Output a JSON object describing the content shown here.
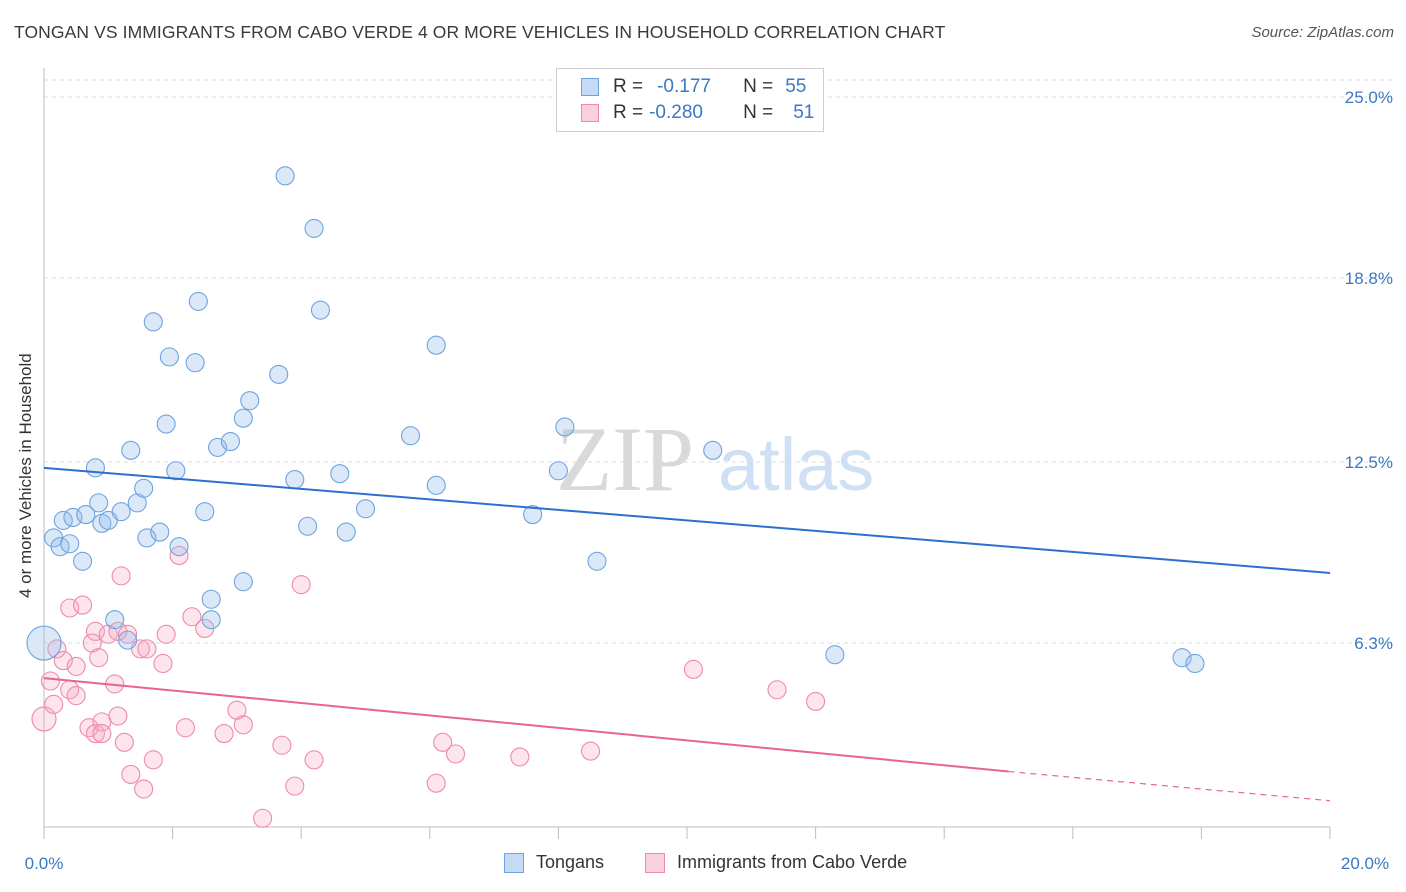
{
  "title": "TONGAN VS IMMIGRANTS FROM CABO VERDE 4 OR MORE VEHICLES IN HOUSEHOLD CORRELATION CHART",
  "source": "Source: ZipAtlas.com",
  "watermark": {
    "zip": "ZIP",
    "atlas": "atlas"
  },
  "legend": {
    "rows": [
      {
        "r_label": "R =",
        "r_value": "-0.177",
        "n_label": "N =",
        "n_value": "55",
        "color": "#6fa3e0"
      },
      {
        "r_label": "R =",
        "r_value": "-0.280",
        "n_label": "N =",
        "n_value": "51",
        "color": "#f08aa8"
      }
    ]
  },
  "bottom_legend": {
    "series1": "Tongans",
    "series2": "Immigrants from Cabo Verde"
  },
  "chart_data": {
    "type": "scatter",
    "title": "TONGAN VS IMMIGRANTS FROM CABO VERDE 4 OR MORE VEHICLES IN HOUSEHOLD CORRELATION CHART",
    "xlabel": "",
    "ylabel": "4 or more Vehicles in Household",
    "xlim": [
      0,
      20
    ],
    "ylim": [
      0,
      25
    ],
    "x_ticks": [
      "0.0%",
      "20.0%"
    ],
    "y_ticks": [
      {
        "value": 25.0,
        "label": "25.0%"
      },
      {
        "value": 18.8,
        "label": "18.8%"
      },
      {
        "value": 12.5,
        "label": "12.5%"
      },
      {
        "value": 6.3,
        "label": "6.3%"
      }
    ],
    "grid": true,
    "legend_position": "top-center",
    "series": [
      {
        "name": "Tongans",
        "color": "#6fa3e0",
        "trend": {
          "x0": 0,
          "y0": 12.3,
          "x1": 20,
          "y1": 8.7
        },
        "points": [
          [
            0.0,
            6.3
          ],
          [
            0.15,
            9.9
          ],
          [
            0.25,
            9.6
          ],
          [
            0.3,
            10.5
          ],
          [
            0.4,
            9.7
          ],
          [
            0.45,
            10.6
          ],
          [
            0.6,
            9.1
          ],
          [
            0.65,
            10.7
          ],
          [
            0.8,
            12.3
          ],
          [
            0.85,
            11.1
          ],
          [
            0.9,
            10.4
          ],
          [
            1.0,
            10.5
          ],
          [
            1.1,
            7.1
          ],
          [
            1.2,
            10.8
          ],
          [
            1.3,
            6.4
          ],
          [
            1.35,
            12.9
          ],
          [
            1.45,
            11.1
          ],
          [
            1.55,
            11.6
          ],
          [
            1.6,
            9.9
          ],
          [
            1.7,
            17.3
          ],
          [
            1.8,
            10.1
          ],
          [
            1.9,
            13.8
          ],
          [
            1.95,
            16.1
          ],
          [
            2.05,
            12.2
          ],
          [
            2.1,
            9.6
          ],
          [
            2.35,
            15.9
          ],
          [
            2.4,
            18.0
          ],
          [
            2.5,
            10.8
          ],
          [
            2.6,
            7.8
          ],
          [
            2.6,
            7.1
          ],
          [
            2.7,
            13.0
          ],
          [
            2.9,
            13.2
          ],
          [
            3.1,
            14.0
          ],
          [
            3.2,
            14.6
          ],
          [
            3.1,
            8.4
          ],
          [
            3.65,
            15.5
          ],
          [
            3.75,
            22.3
          ],
          [
            3.9,
            11.9
          ],
          [
            4.1,
            10.3
          ],
          [
            4.2,
            20.5
          ],
          [
            4.3,
            17.7
          ],
          [
            4.6,
            12.1
          ],
          [
            4.7,
            10.1
          ],
          [
            5.0,
            10.9
          ],
          [
            5.7,
            13.4
          ],
          [
            6.1,
            11.7
          ],
          [
            6.1,
            16.5
          ],
          [
            7.6,
            10.7
          ],
          [
            8.0,
            12.2
          ],
          [
            8.1,
            13.7
          ],
          [
            8.6,
            9.1
          ],
          [
            10.4,
            12.9
          ],
          [
            12.3,
            5.9
          ],
          [
            17.7,
            5.8
          ],
          [
            17.9,
            5.6
          ]
        ]
      },
      {
        "name": "Immigrants from Cabo Verde",
        "color": "#f08aa8",
        "trend": {
          "x0": 0,
          "y0": 5.1,
          "x1": 15,
          "y1": 1.9,
          "dash_x1": 20,
          "dash_y1": 0.9
        },
        "points": [
          [
            0.0,
            3.7
          ],
          [
            0.1,
            5.0
          ],
          [
            0.15,
            4.2
          ],
          [
            0.2,
            6.1
          ],
          [
            0.3,
            5.7
          ],
          [
            0.4,
            7.5
          ],
          [
            0.4,
            4.7
          ],
          [
            0.5,
            4.5
          ],
          [
            0.5,
            5.5
          ],
          [
            0.6,
            7.6
          ],
          [
            0.7,
            3.4
          ],
          [
            0.75,
            6.3
          ],
          [
            0.8,
            6.7
          ],
          [
            0.8,
            3.2
          ],
          [
            0.85,
            5.8
          ],
          [
            0.9,
            3.6
          ],
          [
            1.0,
            6.6
          ],
          [
            1.1,
            4.9
          ],
          [
            1.15,
            3.8
          ],
          [
            1.15,
            6.7
          ],
          [
            1.2,
            8.6
          ],
          [
            1.25,
            2.9
          ],
          [
            1.3,
            6.6
          ],
          [
            1.35,
            1.8
          ],
          [
            1.5,
            6.1
          ],
          [
            1.55,
            1.3
          ],
          [
            1.6,
            6.1
          ],
          [
            1.7,
            2.3
          ],
          [
            1.85,
            5.6
          ],
          [
            1.9,
            6.6
          ],
          [
            2.1,
            9.3
          ],
          [
            2.2,
            3.4
          ],
          [
            2.3,
            7.2
          ],
          [
            2.5,
            6.8
          ],
          [
            2.8,
            3.2
          ],
          [
            3.0,
            4.0
          ],
          [
            3.1,
            3.5
          ],
          [
            3.4,
            0.3
          ],
          [
            3.7,
            2.8
          ],
          [
            3.9,
            1.4
          ],
          [
            4.0,
            8.3
          ],
          [
            4.2,
            2.3
          ],
          [
            6.1,
            1.5
          ],
          [
            6.2,
            2.9
          ],
          [
            6.4,
            2.5
          ],
          [
            7.4,
            2.4
          ],
          [
            8.5,
            2.6
          ],
          [
            10.1,
            5.4
          ],
          [
            11.4,
            4.7
          ],
          [
            12.0,
            4.3
          ],
          [
            0.9,
            3.2
          ]
        ]
      }
    ]
  }
}
